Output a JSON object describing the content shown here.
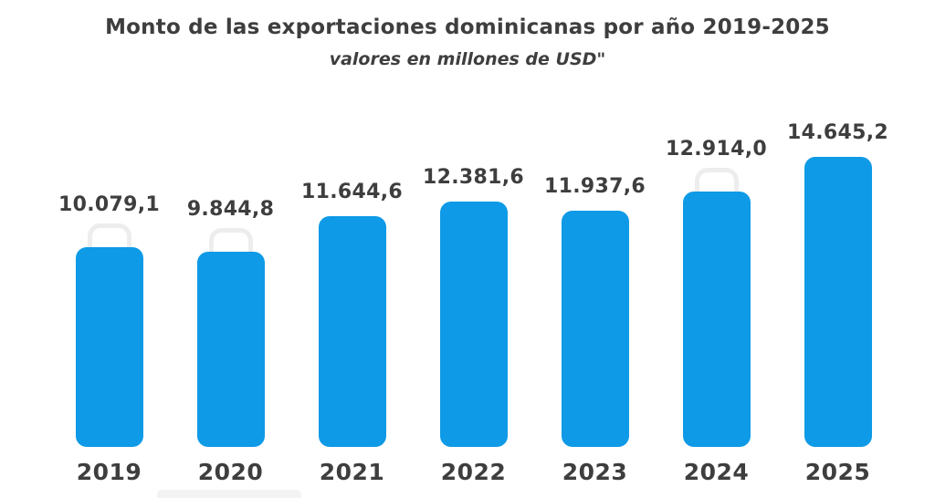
{
  "header": {
    "title": "Monto de las exportaciones dominicanas por año 2019-2025",
    "subtitle": "valores en millones de USD\""
  },
  "colors": {
    "bar_fill": "#0e9ae6",
    "text": "#3e3e3e",
    "handle_outline": "#ededed",
    "background": "#ffffff"
  },
  "chart_data": {
    "type": "bar",
    "title": "Monto de las exportaciones dominicanas por año 2019-2025",
    "subtitle": "valores en millones de USD\"",
    "categories": [
      "2019",
      "2020",
      "2021",
      "2022",
      "2023",
      "2024",
      "2025"
    ],
    "values": [
      10079.1,
      9844.8,
      11644.6,
      12381.6,
      11937.6,
      12914.0,
      14645.2
    ],
    "value_labels": [
      "10.079,1",
      "9.844,8",
      "11.644,6",
      "12.381,6",
      "11.937,6",
      "12.914,0",
      "14.645,2"
    ],
    "handle_decoration": [
      true,
      true,
      false,
      false,
      false,
      true,
      false
    ],
    "xlabel": "",
    "ylabel": "",
    "ylim": [
      0,
      14645.2
    ],
    "grid": false,
    "legend": false,
    "orientation": "vertical"
  }
}
